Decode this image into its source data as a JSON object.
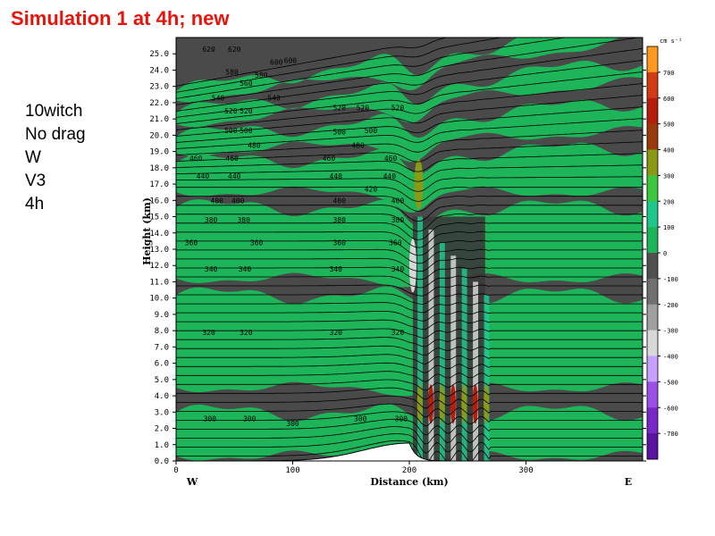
{
  "slide": {
    "title": "Simulation 1 at 4h; new",
    "notes": [
      "10witch",
      "No drag",
      "W",
      "V3",
      "4h"
    ]
  },
  "chart_data": {
    "type": "heatmap",
    "title": "",
    "xlabel": "Distance (km)",
    "ylabel": "Height (km)",
    "xlim": [
      0,
      400
    ],
    "ylim": [
      0,
      26
    ],
    "x_ticks": [
      "0",
      "100",
      "200",
      "300"
    ],
    "x_tick_values": [
      0,
      100,
      200,
      300
    ],
    "x_side_labels": {
      "left": "W",
      "right": "E"
    },
    "y_ticks": [
      "0.0",
      "1.0",
      "2.0",
      "3.0",
      "4.0",
      "5.0",
      "6.0",
      "7.0",
      "8.0",
      "9.0",
      "10.0",
      "11.0",
      "12.0",
      "13.0",
      "14.0",
      "15.0",
      "16.0",
      "17.0",
      "18.0",
      "19.0",
      "20.0",
      "21.0",
      "22.0",
      "23.0",
      "24.0",
      "25.0"
    ],
    "colorbar": {
      "unit": "cm s⁻¹",
      "labels": [
        "700",
        "600",
        "500",
        "400",
        "300",
        "200",
        "100",
        "0",
        "-100",
        "-200",
        "-300",
        "-400",
        "-500",
        "-600",
        "-700"
      ],
      "colors": [
        "#ff9a1e",
        "#d23c14",
        "#b41e0a",
        "#9a3a0a",
        "#8a9a14",
        "#3cc83c",
        "#1ec88c",
        "#1eb45a",
        "#505050",
        "#707070",
        "#a0a0a0",
        "#d8d8d8",
        "#c8a0ff",
        "#9a50e6",
        "#7828c8",
        "#5a14a0"
      ]
    },
    "contour_labels": [
      {
        "text": "620",
        "x": 28,
        "y": 25.3
      },
      {
        "text": "620",
        "x": 50,
        "y": 25.3
      },
      {
        "text": "580",
        "x": 48,
        "y": 23.9
      },
      {
        "text": "560",
        "x": 60,
        "y": 23.2
      },
      {
        "text": "580",
        "x": 73,
        "y": 23.7
      },
      {
        "text": "600",
        "x": 86,
        "y": 24.5
      },
      {
        "text": "600",
        "x": 98,
        "y": 24.6
      },
      {
        "text": "540",
        "x": 36,
        "y": 22.3
      },
      {
        "text": "540",
        "x": 84,
        "y": 22.3
      },
      {
        "text": "520",
        "x": 47,
        "y": 21.5
      },
      {
        "text": "520",
        "x": 60,
        "y": 21.5
      },
      {
        "text": "500",
        "x": 47,
        "y": 20.3
      },
      {
        "text": "500",
        "x": 60,
        "y": 20.3
      },
      {
        "text": "480",
        "x": 67,
        "y": 19.4
      },
      {
        "text": "460",
        "x": 17,
        "y": 18.6
      },
      {
        "text": "460",
        "x": 48,
        "y": 18.6
      },
      {
        "text": "440",
        "x": 23,
        "y": 17.5
      },
      {
        "text": "440",
        "x": 50,
        "y": 17.5
      },
      {
        "text": "400",
        "x": 35,
        "y": 16.0
      },
      {
        "text": "400",
        "x": 53,
        "y": 16.0
      },
      {
        "text": "380",
        "x": 30,
        "y": 14.8
      },
      {
        "text": "380",
        "x": 58,
        "y": 14.8
      },
      {
        "text": "360",
        "x": 13,
        "y": 13.4
      },
      {
        "text": "360",
        "x": 69,
        "y": 13.4
      },
      {
        "text": "340",
        "x": 30,
        "y": 11.8
      },
      {
        "text": "340",
        "x": 59,
        "y": 11.8
      },
      {
        "text": "320",
        "x": 28,
        "y": 7.9
      },
      {
        "text": "320",
        "x": 60,
        "y": 7.9
      },
      {
        "text": "300",
        "x": 29,
        "y": 2.6
      },
      {
        "text": "300",
        "x": 63,
        "y": 2.6
      },
      {
        "text": "300",
        "x": 100,
        "y": 2.3
      },
      {
        "text": "520",
        "x": 140,
        "y": 21.7
      },
      {
        "text": "520",
        "x": 160,
        "y": 21.7
      },
      {
        "text": "520",
        "x": 190,
        "y": 21.7
      },
      {
        "text": "500",
        "x": 140,
        "y": 20.2
      },
      {
        "text": "500",
        "x": 167,
        "y": 20.3
      },
      {
        "text": "480",
        "x": 156,
        "y": 19.4
      },
      {
        "text": "460",
        "x": 131,
        "y": 18.6
      },
      {
        "text": "460",
        "x": 184,
        "y": 18.6
      },
      {
        "text": "440",
        "x": 137,
        "y": 17.5
      },
      {
        "text": "440",
        "x": 183,
        "y": 17.5
      },
      {
        "text": "420",
        "x": 167,
        "y": 16.7
      },
      {
        "text": "400",
        "x": 140,
        "y": 16.0
      },
      {
        "text": "400",
        "x": 190,
        "y": 16.0
      },
      {
        "text": "380",
        "x": 140,
        "y": 14.8
      },
      {
        "text": "380",
        "x": 190,
        "y": 14.8
      },
      {
        "text": "360",
        "x": 140,
        "y": 13.4
      },
      {
        "text": "360",
        "x": 188,
        "y": 13.4
      },
      {
        "text": "340",
        "x": 137,
        "y": 11.8
      },
      {
        "text": "340",
        "x": 190,
        "y": 11.8
      },
      {
        "text": "320",
        "x": 137,
        "y": 7.9
      },
      {
        "text": "320",
        "x": 190,
        "y": 7.9
      },
      {
        "text": "300",
        "x": 158,
        "y": 2.6
      },
      {
        "text": "300",
        "x": 193,
        "y": 2.6
      }
    ],
    "terrain": {
      "description_free": true,
      "peak_x": 200,
      "peak_height": 1.1
    },
    "grid": false
  }
}
